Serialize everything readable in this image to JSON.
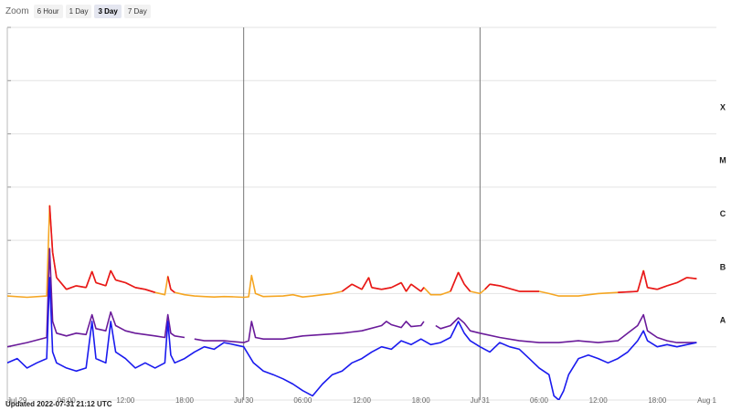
{
  "zoom": {
    "label": "Zoom",
    "buttons": [
      "6 Hour",
      "1 Day",
      "3 Day",
      "7 Day"
    ],
    "active": "3 Day"
  },
  "updated": "Updated 2022-07-31 21:12 UTC",
  "chart_data": {
    "type": "line",
    "x_unit": "hours since Jul 29 00:00 UTC",
    "xlim": [
      0,
      72
    ],
    "y_scale": "log",
    "ylim": [
      1e-09,
      0.01
    ],
    "flare_classes": [
      {
        "label": "X",
        "value": 0.0001
      },
      {
        "label": "M",
        "value": 1e-05
      },
      {
        "label": "C",
        "value": 1e-06
      },
      {
        "label": "B",
        "value": 1e-07
      },
      {
        "label": "A",
        "value": 1e-08
      }
    ],
    "x_ticks": [
      {
        "x": 0,
        "label": "Jul 29",
        "major": true
      },
      {
        "x": 6,
        "label": "06:00",
        "major": false
      },
      {
        "x": 12,
        "label": "12:00",
        "major": false
      },
      {
        "x": 18,
        "label": "18:00",
        "major": false
      },
      {
        "x": 24,
        "label": "Jul 30",
        "major": true
      },
      {
        "x": 30,
        "label": "06:00",
        "major": false
      },
      {
        "x": 36,
        "label": "12:00",
        "major": false
      },
      {
        "x": 42,
        "label": "18:00",
        "major": false
      },
      {
        "x": 48,
        "label": "Jul 31",
        "major": true
      },
      {
        "x": 54,
        "label": "06:00",
        "major": false
      },
      {
        "x": 60,
        "label": "12:00",
        "major": false
      },
      {
        "x": 66,
        "label": "18:00",
        "major": false
      },
      {
        "x": 72,
        "label": "Aug 1",
        "major": true
      }
    ],
    "series": [
      {
        "color": "#f5a623",
        "high_color": "#e8141e",
        "high_threshold": 1.05e-07,
        "x": [
          0,
          2,
          4,
          4.3,
          4.6,
          5,
          6,
          7,
          8,
          8.6,
          9,
          10,
          10.5,
          11,
          12,
          13,
          14,
          15,
          16,
          16.3,
          16.6,
          17,
          18,
          19,
          20,
          21,
          22,
          23,
          24,
          24.5,
          24.8,
          25.2,
          26,
          28,
          29,
          30,
          31,
          32,
          33,
          34,
          35,
          36,
          36.7,
          37,
          38,
          39,
          40,
          40.5,
          41,
          42,
          42.3,
          43,
          44,
          45,
          45.8,
          46.4,
          47,
          48,
          48.5,
          49,
          50,
          52,
          54,
          55,
          56,
          58,
          60,
          62,
          64,
          64.6,
          65,
          66,
          67,
          68,
          69,
          70
        ],
        "y": [
          9e-08,
          8.5e-08,
          9e-08,
          4.5e-06,
          6e-07,
          2e-07,
          1.2e-07,
          1.4e-07,
          1.3e-07,
          2.6e-07,
          1.6e-07,
          1.4e-07,
          2.7e-07,
          1.8e-07,
          1.6e-07,
          1.3e-07,
          1.2e-07,
          1.05e-07,
          9.5e-08,
          2.1e-07,
          1.2e-07,
          1.05e-07,
          9.5e-08,
          9e-08,
          8.8e-08,
          8.6e-08,
          8.8e-08,
          8.7e-08,
          8.5e-08,
          8.7e-08,
          2.2e-07,
          1e-07,
          8.8e-08,
          9e-08,
          9.5e-08,
          8.6e-08,
          9e-08,
          9.5e-08,
          1e-07,
          1.1e-07,
          1.5e-07,
          1.2e-07,
          2e-07,
          1.3e-07,
          1.2e-07,
          1.3e-07,
          1.6e-07,
          1.1e-07,
          1.5e-07,
          1.1e-07,
          1.3e-07,
          9.5e-08,
          9.5e-08,
          1.1e-07,
          2.5e-07,
          1.5e-07,
          1.1e-07,
          1e-07,
          1.2e-07,
          1.5e-07,
          1.4e-07,
          1.1e-07,
          1.1e-07,
          1e-07,
          9e-08,
          9e-08,
          1e-07,
          1.05e-07,
          1.1e-07,
          2.7e-07,
          1.3e-07,
          1.2e-07,
          1.4e-07,
          1.6e-07,
          2e-07,
          1.9e-07
        ]
      },
      {
        "color": "#6a1b9a",
        "x": [
          0,
          2,
          4,
          4.3,
          4.6,
          5,
          6,
          7,
          8,
          8.6,
          9,
          10,
          10.5,
          11,
          12,
          13,
          14,
          15,
          16,
          16.3,
          16.6,
          17,
          18,
          18.5,
          19,
          20,
          22,
          24,
          24.5,
          24.8,
          25.2,
          26,
          28,
          30,
          32,
          34,
          36,
          38,
          38.5,
          39,
          40,
          40.5,
          41,
          42,
          42.3,
          42.5,
          43.5,
          44,
          45,
          45.8,
          46.4,
          47,
          48,
          50,
          52,
          54,
          56,
          58,
          60,
          62,
          63,
          64,
          64.6,
          65,
          66,
          67,
          68,
          69,
          70
        ],
        "y": [
          1e-08,
          1.2e-08,
          1.5e-08,
          7e-07,
          3e-08,
          1.8e-08,
          1.6e-08,
          1.8e-08,
          1.7e-08,
          4e-08,
          2.2e-08,
          2e-08,
          4.5e-08,
          2.5e-08,
          2e-08,
          1.8e-08,
          1.7e-08,
          1.6e-08,
          1.5e-08,
          4e-08,
          1.8e-08,
          1.6e-08,
          1.5e-08,
          null,
          1.4e-08,
          1.3e-08,
          1.3e-08,
          1.2e-08,
          1.3e-08,
          3e-08,
          1.5e-08,
          1.4e-08,
          1.4e-08,
          1.6e-08,
          1.7e-08,
          1.8e-08,
          2e-08,
          2.5e-08,
          3e-08,
          2.6e-08,
          2.3e-08,
          3e-08,
          2.4e-08,
          2.5e-08,
          3e-08,
          null,
          2.5e-08,
          2.2e-08,
          2.5e-08,
          3.5e-08,
          2.8e-08,
          2e-08,
          1.8e-08,
          1.5e-08,
          1.3e-08,
          1.2e-08,
          1.2e-08,
          1.3e-08,
          1.2e-08,
          1.3e-08,
          1.8e-08,
          2.5e-08,
          4e-08,
          2e-08,
          1.5e-08,
          1.3e-08,
          1.2e-08,
          1.2e-08,
          1.2e-08
        ]
      },
      {
        "color": "#1a1aee",
        "x": [
          0,
          1,
          2,
          3,
          4,
          4.3,
          4.6,
          5,
          6,
          7,
          8,
          8.6,
          9,
          10,
          10.5,
          11,
          12,
          13,
          14,
          15,
          16,
          16.3,
          16.6,
          17,
          18,
          19,
          20,
          21,
          22,
          23,
          24,
          25,
          26,
          27,
          28,
          29,
          30,
          31,
          32,
          33,
          34,
          35,
          36,
          37,
          38,
          39,
          40,
          41,
          42,
          43,
          44,
          45,
          45.8,
          46.4,
          47,
          48,
          49,
          50,
          51,
          52,
          53,
          54,
          55,
          55.5,
          56,
          56.5,
          57,
          58,
          59,
          60,
          61,
          62,
          63,
          64,
          64.6,
          65,
          66,
          67,
          68,
          69,
          70
        ],
        "y": [
          5e-09,
          6e-09,
          4e-09,
          5e-09,
          6e-09,
          2e-07,
          8e-09,
          5e-09,
          4e-09,
          3.5e-09,
          4e-09,
          3e-08,
          6e-09,
          5e-09,
          3e-08,
          8e-09,
          6e-09,
          4e-09,
          5e-09,
          4e-09,
          5e-09,
          3e-08,
          7e-09,
          5e-09,
          6e-09,
          8e-09,
          1e-08,
          9e-09,
          1.2e-08,
          1.1e-08,
          1e-08,
          5e-09,
          3.5e-09,
          3e-09,
          2.5e-09,
          2e-09,
          1.5e-09,
          1.2e-09,
          2e-09,
          3e-09,
          3.5e-09,
          5e-09,
          6e-09,
          8e-09,
          1e-08,
          9e-09,
          1.3e-08,
          1.1e-08,
          1.4e-08,
          1.1e-08,
          1.2e-08,
          1.5e-08,
          3e-08,
          1.8e-08,
          1.3e-08,
          1e-08,
          8e-09,
          1.2e-08,
          1e-08,
          9e-09,
          6e-09,
          4e-09,
          3e-09,
          1.2e-09,
          1e-09,
          1.5e-09,
          3e-09,
          6e-09,
          7e-09,
          6e-09,
          5e-09,
          6e-09,
          8e-09,
          1.3e-08,
          2e-08,
          1.3e-08,
          1e-08,
          1.1e-08,
          1e-08,
          1.1e-08,
          1.2e-08
        ]
      }
    ]
  }
}
